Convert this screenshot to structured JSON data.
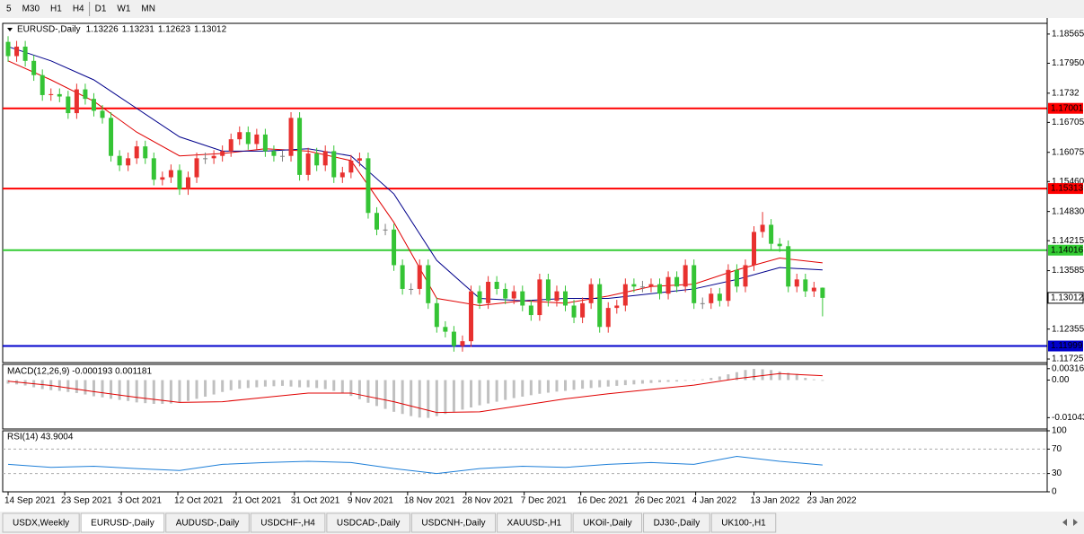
{
  "toolbar": {
    "timeframes": [
      "5",
      "M30",
      "H1",
      "H4",
      "D1",
      "W1",
      "MN"
    ],
    "active": 4
  },
  "chart_data": [
    {
      "type": "candlestick",
      "title": "EURUSD-,Daily",
      "bull_color": "#e8312f",
      "bear_color": "#35c435",
      "doji_color": "#808080",
      "xlim": [
        -0.63,
        121.2
      ],
      "ylim": [
        1.1165,
        1.1879
      ],
      "yticks": [
        1.18565,
        {
          "value": 1.1795,
          "label": "1.17950"
        },
        1.1732,
        1.16705,
        1.16075,
        {
          "value": 1.1546,
          "label": "1.15460"
        },
        {
          "value": 1.1483,
          "label": "1.14830"
        },
        1.14215,
        1.13585,
        {
          "value": 1.1297,
          "label": "1.12970"
        },
        1.12355,
        1.11725
      ],
      "xticks": [
        {
          "value": 0,
          "label": "14 Sep 2021"
        },
        {
          "value": 6.6,
          "label": "23 Sep 2021"
        },
        {
          "value": 13.2,
          "label": "3 Oct 2021"
        },
        {
          "value": 19.8,
          "label": "12 Oct 2021"
        },
        {
          "value": 26.6,
          "label": "21 Oct 2021"
        },
        {
          "value": 33.4,
          "label": "31 Oct 2021"
        },
        {
          "value": 40,
          "label": "9 Nov 2021"
        },
        {
          "value": 46.6,
          "label": "18 Nov 2021"
        },
        {
          "value": 53.4,
          "label": "28 Nov 2021"
        },
        {
          "value": 60.2,
          "label": "7 Dec 2021"
        },
        {
          "value": 66.8,
          "label": "16 Dec 2021"
        },
        {
          "value": 73.5,
          "label": "26 Dec 2021"
        },
        {
          "value": 80.2,
          "label": "4 Jan 2022"
        },
        {
          "value": 87,
          "label": "13 Jan 2022"
        },
        {
          "value": 93.6,
          "label": "23 Jan 2022"
        }
      ],
      "open": [
        1.184,
        1.181,
        1.183,
        1.18,
        1.177,
        1.1728,
        1.173,
        1.1725,
        1.169,
        1.174,
        1.172,
        1.1695,
        1.168,
        1.16,
        1.158,
        1.1595,
        1.162,
        1.1595,
        1.155,
        1.1555,
        1.157,
        1.153,
        1.1555,
        1.1595,
        1.1595,
        1.16,
        1.161,
        1.1635,
        1.165,
        1.1625,
        1.1645,
        1.161,
        1.16,
        1.16,
        1.168,
        1.156,
        1.1605,
        1.158,
        1.161,
        1.1555,
        1.1565,
        1.159,
        1.1595,
        1.148,
        1.1445,
        1.1445,
        1.137,
        1.132,
        1.132,
        1.137,
        1.129,
        1.124,
        1.123,
        1.12,
        1.121,
        1.1315,
        1.129,
        1.1335,
        1.132,
        1.13,
        1.1315,
        1.1285,
        1.1265,
        1.134,
        1.1295,
        1.1315,
        1.1285,
        1.126,
        1.129,
        1.133,
        1.124,
        1.128,
        1.1285,
        1.133,
        1.1325,
        1.1325,
        1.133,
        1.131,
        1.1345,
        1.1325,
        1.137,
        1.129,
        1.129,
        1.131,
        1.1295,
        1.136,
        1.1325,
        1.137,
        1.144,
        1.1455,
        1.1415,
        1.141,
        1.1325,
        1.134,
        1.1315,
        1.13226
      ],
      "high": [
        1.1852,
        1.1842,
        1.1842,
        1.1812,
        1.1782,
        1.1742,
        1.1742,
        1.1737,
        1.1752,
        1.1752,
        1.1732,
        1.1707,
        1.1692,
        1.1612,
        1.1607,
        1.1632,
        1.1632,
        1.1607,
        1.1567,
        1.1582,
        1.1582,
        1.1567,
        1.1607,
        1.1607,
        1.1612,
        1.1622,
        1.1647,
        1.1662,
        1.1662,
        1.1657,
        1.1657,
        1.1622,
        1.1612,
        1.1692,
        1.1692,
        1.1617,
        1.1617,
        1.1622,
        1.1622,
        1.1577,
        1.1602,
        1.1607,
        1.1607,
        1.1492,
        1.1457,
        1.1457,
        1.1382,
        1.1332,
        1.1382,
        1.1382,
        1.1302,
        1.1252,
        1.1242,
        1.1222,
        1.1327,
        1.1327,
        1.1347,
        1.1347,
        1.1332,
        1.1327,
        1.1327,
        1.1297,
        1.1352,
        1.1352,
        1.1327,
        1.1327,
        1.1297,
        1.1302,
        1.1342,
        1.1342,
        1.1292,
        1.1297,
        1.1342,
        1.1342,
        1.1337,
        1.1342,
        1.1342,
        1.1357,
        1.1357,
        1.1382,
        1.1382,
        1.1302,
        1.1322,
        1.1322,
        1.1372,
        1.1372,
        1.1382,
        1.1452,
        1.1482,
        1.1467,
        1.1427,
        1.1422,
        1.1352,
        1.1352,
        1.1335,
        1.13231
      ],
      "low": [
        1.1798,
        1.1798,
        1.1788,
        1.1758,
        1.1716,
        1.1716,
        1.1713,
        1.1678,
        1.1678,
        1.1708,
        1.1683,
        1.1668,
        1.1588,
        1.1568,
        1.1568,
        1.1583,
        1.1583,
        1.1538,
        1.1538,
        1.1543,
        1.1518,
        1.1518,
        1.1543,
        1.1583,
        1.1583,
        1.1588,
        1.1598,
        1.1623,
        1.1613,
        1.1613,
        1.1598,
        1.1588,
        1.1588,
        1.1588,
        1.1548,
        1.1548,
        1.1568,
        1.1568,
        1.1543,
        1.1543,
        1.1553,
        1.1578,
        1.1468,
        1.1433,
        1.1433,
        1.1358,
        1.1308,
        1.1308,
        1.1308,
        1.1278,
        1.1228,
        1.1218,
        1.1188,
        1.1188,
        1.1198,
        1.1278,
        1.1278,
        1.1308,
        1.1288,
        1.1288,
        1.1273,
        1.1253,
        1.1253,
        1.1283,
        1.1283,
        1.1273,
        1.1248,
        1.1248,
        1.1278,
        1.1228,
        1.1228,
        1.1268,
        1.1273,
        1.1313,
        1.1313,
        1.1313,
        1.1298,
        1.1298,
        1.1313,
        1.1313,
        1.1278,
        1.1278,
        1.1278,
        1.1283,
        1.1283,
        1.1313,
        1.1313,
        1.1358,
        1.1428,
        1.1403,
        1.1398,
        1.1313,
        1.1313,
        1.1303,
        1.1303,
        1.12623
      ],
      "close": [
        1.181,
        1.183,
        1.18,
        1.177,
        1.1728,
        1.173,
        1.1725,
        1.169,
        1.174,
        1.172,
        1.1695,
        1.168,
        1.16,
        1.158,
        1.1595,
        1.162,
        1.1595,
        1.155,
        1.1555,
        1.157,
        1.153,
        1.1555,
        1.1595,
        1.1595,
        1.16,
        1.161,
        1.1635,
        1.165,
        1.1625,
        1.1645,
        1.161,
        1.16,
        1.16,
        1.168,
        1.156,
        1.1605,
        1.158,
        1.161,
        1.1555,
        1.1565,
        1.159,
        1.1595,
        1.148,
        1.1445,
        1.1445,
        1.137,
        1.132,
        1.132,
        1.137,
        1.129,
        1.124,
        1.123,
        1.12,
        1.121,
        1.1315,
        1.129,
        1.1335,
        1.132,
        1.13,
        1.1315,
        1.1285,
        1.1265,
        1.134,
        1.1295,
        1.1315,
        1.1285,
        1.126,
        1.129,
        1.133,
        1.124,
        1.128,
        1.1285,
        1.133,
        1.1325,
        1.1325,
        1.133,
        1.131,
        1.1345,
        1.1325,
        1.137,
        1.129,
        1.129,
        1.131,
        1.1295,
        1.136,
        1.1325,
        1.137,
        1.144,
        1.1455,
        1.1415,
        1.141,
        1.1325,
        1.134,
        1.1315,
        1.13226,
        1.13012
      ],
      "ma_x": [
        0,
        5,
        10,
        15,
        20,
        25,
        30,
        35,
        40,
        45,
        50,
        55,
        60,
        65,
        70,
        75,
        80,
        85,
        90,
        95
      ],
      "ma": [
        {
          "color": "#e00000",
          "values": [
            1.18,
            1.176,
            1.1715,
            1.165,
            1.16,
            1.1605,
            1.1615,
            1.161,
            1.159,
            1.146,
            1.13,
            1.1285,
            1.1295,
            1.129,
            1.1305,
            1.1325,
            1.133,
            1.136,
            1.1385,
            1.1375
          ]
        },
        {
          "color": "#00008b",
          "values": [
            1.183,
            1.18,
            1.176,
            1.17,
            1.164,
            1.161,
            1.161,
            1.1615,
            1.16,
            1.152,
            1.138,
            1.13,
            1.1295,
            1.13,
            1.13,
            1.131,
            1.132,
            1.134,
            1.1365,
            1.136
          ]
        }
      ],
      "levels": [
        {
          "value": 1.17001,
          "color": "#ff0000"
        },
        {
          "value": 1.15313,
          "color": "#ff0000"
        },
        {
          "value": 1.14016,
          "color": "#33cc33"
        },
        {
          "value": 1.11999,
          "color": "#0000cc"
        }
      ]
    },
    {
      "type": "macd",
      "title": "MACD(12,26,9) -0.000193 0.001181",
      "xlim": [
        -0.63,
        121.2
      ],
      "ylim": [
        -0.01358,
        0.00436
      ],
      "yticks": [
        0.003165,
        {
          "value": 0,
          "label": "0.00"
        },
        -0.01043
      ],
      "histogram_color": "#c0c0c0",
      "signal_color": "#e00000",
      "values": [
        -0.001,
        -0.0012,
        -0.0015,
        -0.002,
        -0.0025,
        -0.0028,
        -0.003,
        -0.0033,
        -0.0036,
        -0.004,
        -0.0045,
        -0.0048,
        -0.0052,
        -0.0055,
        -0.0058,
        -0.0062,
        -0.0064,
        -0.0066,
        -0.0066,
        -0.0065,
        -0.0062,
        -0.0058,
        -0.0052,
        -0.0046,
        -0.004,
        -0.0033,
        -0.0028,
        -0.0024,
        -0.0022,
        -0.002,
        -0.0018,
        -0.0017,
        -0.0016,
        -0.0018,
        -0.002,
        -0.002,
        -0.0022,
        -0.0025,
        -0.003,
        -0.0036,
        -0.0044,
        -0.0053,
        -0.0063,
        -0.0072,
        -0.008,
        -0.0088,
        -0.0094,
        -0.01,
        -0.0104,
        -0.0105,
        -0.01,
        -0.0094,
        -0.0088,
        -0.0082,
        -0.0076,
        -0.007,
        -0.0065,
        -0.006,
        -0.0055,
        -0.005,
        -0.0046,
        -0.0042,
        -0.0038,
        -0.0035,
        -0.0032,
        -0.003,
        -0.0027,
        -0.0024,
        -0.0022,
        -0.002,
        -0.0018,
        -0.0016,
        -0.0014,
        -0.0012,
        -0.001,
        -0.0008,
        -0.0006,
        -0.0005,
        -0.0004,
        -0.0002,
        0.0,
        0.0002,
        0.0006,
        0.001,
        0.0016,
        0.0022,
        0.0028,
        0.0031,
        0.003,
        0.0028,
        0.0024,
        0.002,
        0.0017,
        0.0006,
        0.0002,
        -0.0002
      ],
      "signal_x": [
        0,
        5,
        10,
        15,
        20,
        25,
        30,
        35,
        40,
        45,
        50,
        55,
        60,
        65,
        70,
        75,
        80,
        85,
        90,
        95
      ],
      "signal": [
        -0.0003,
        -0.0015,
        -0.0032,
        -0.0048,
        -0.0062,
        -0.006,
        -0.0048,
        -0.0036,
        -0.0036,
        -0.006,
        -0.009,
        -0.0088,
        -0.007,
        -0.0052,
        -0.0038,
        -0.0026,
        -0.0014,
        0.0004,
        0.0018,
        0.0012
      ]
    },
    {
      "type": "rsi",
      "title": "RSI(14) 43.9004",
      "xlim": [
        -0.63,
        121.2
      ],
      "ylim": [
        0,
        100
      ],
      "yticks": [
        100,
        70,
        30,
        0
      ],
      "levels": [
        70,
        30
      ],
      "color": "#1e7fd8",
      "x": [
        0,
        5,
        10,
        15,
        20,
        25,
        30,
        35,
        40,
        45,
        50,
        55,
        60,
        65,
        70,
        75,
        80,
        85,
        90,
        95
      ],
      "values": [
        45,
        40,
        42,
        38,
        35,
        45,
        48,
        50,
        48,
        38,
        30,
        38,
        42,
        40,
        45,
        48,
        45,
        58,
        50,
        44
      ]
    }
  ],
  "tabs": [
    "USDX,Weekly",
    "EURUSD-,Daily",
    "AUDUSD-,Daily",
    "USDCHF-,H4",
    "USDCAD-,Daily",
    "USDCNH-,Daily",
    "XAUUSD-,H1",
    "UKOil-,Daily",
    "DJ30-,Daily",
    "UK100-,H1"
  ],
  "active_tab": 1
}
